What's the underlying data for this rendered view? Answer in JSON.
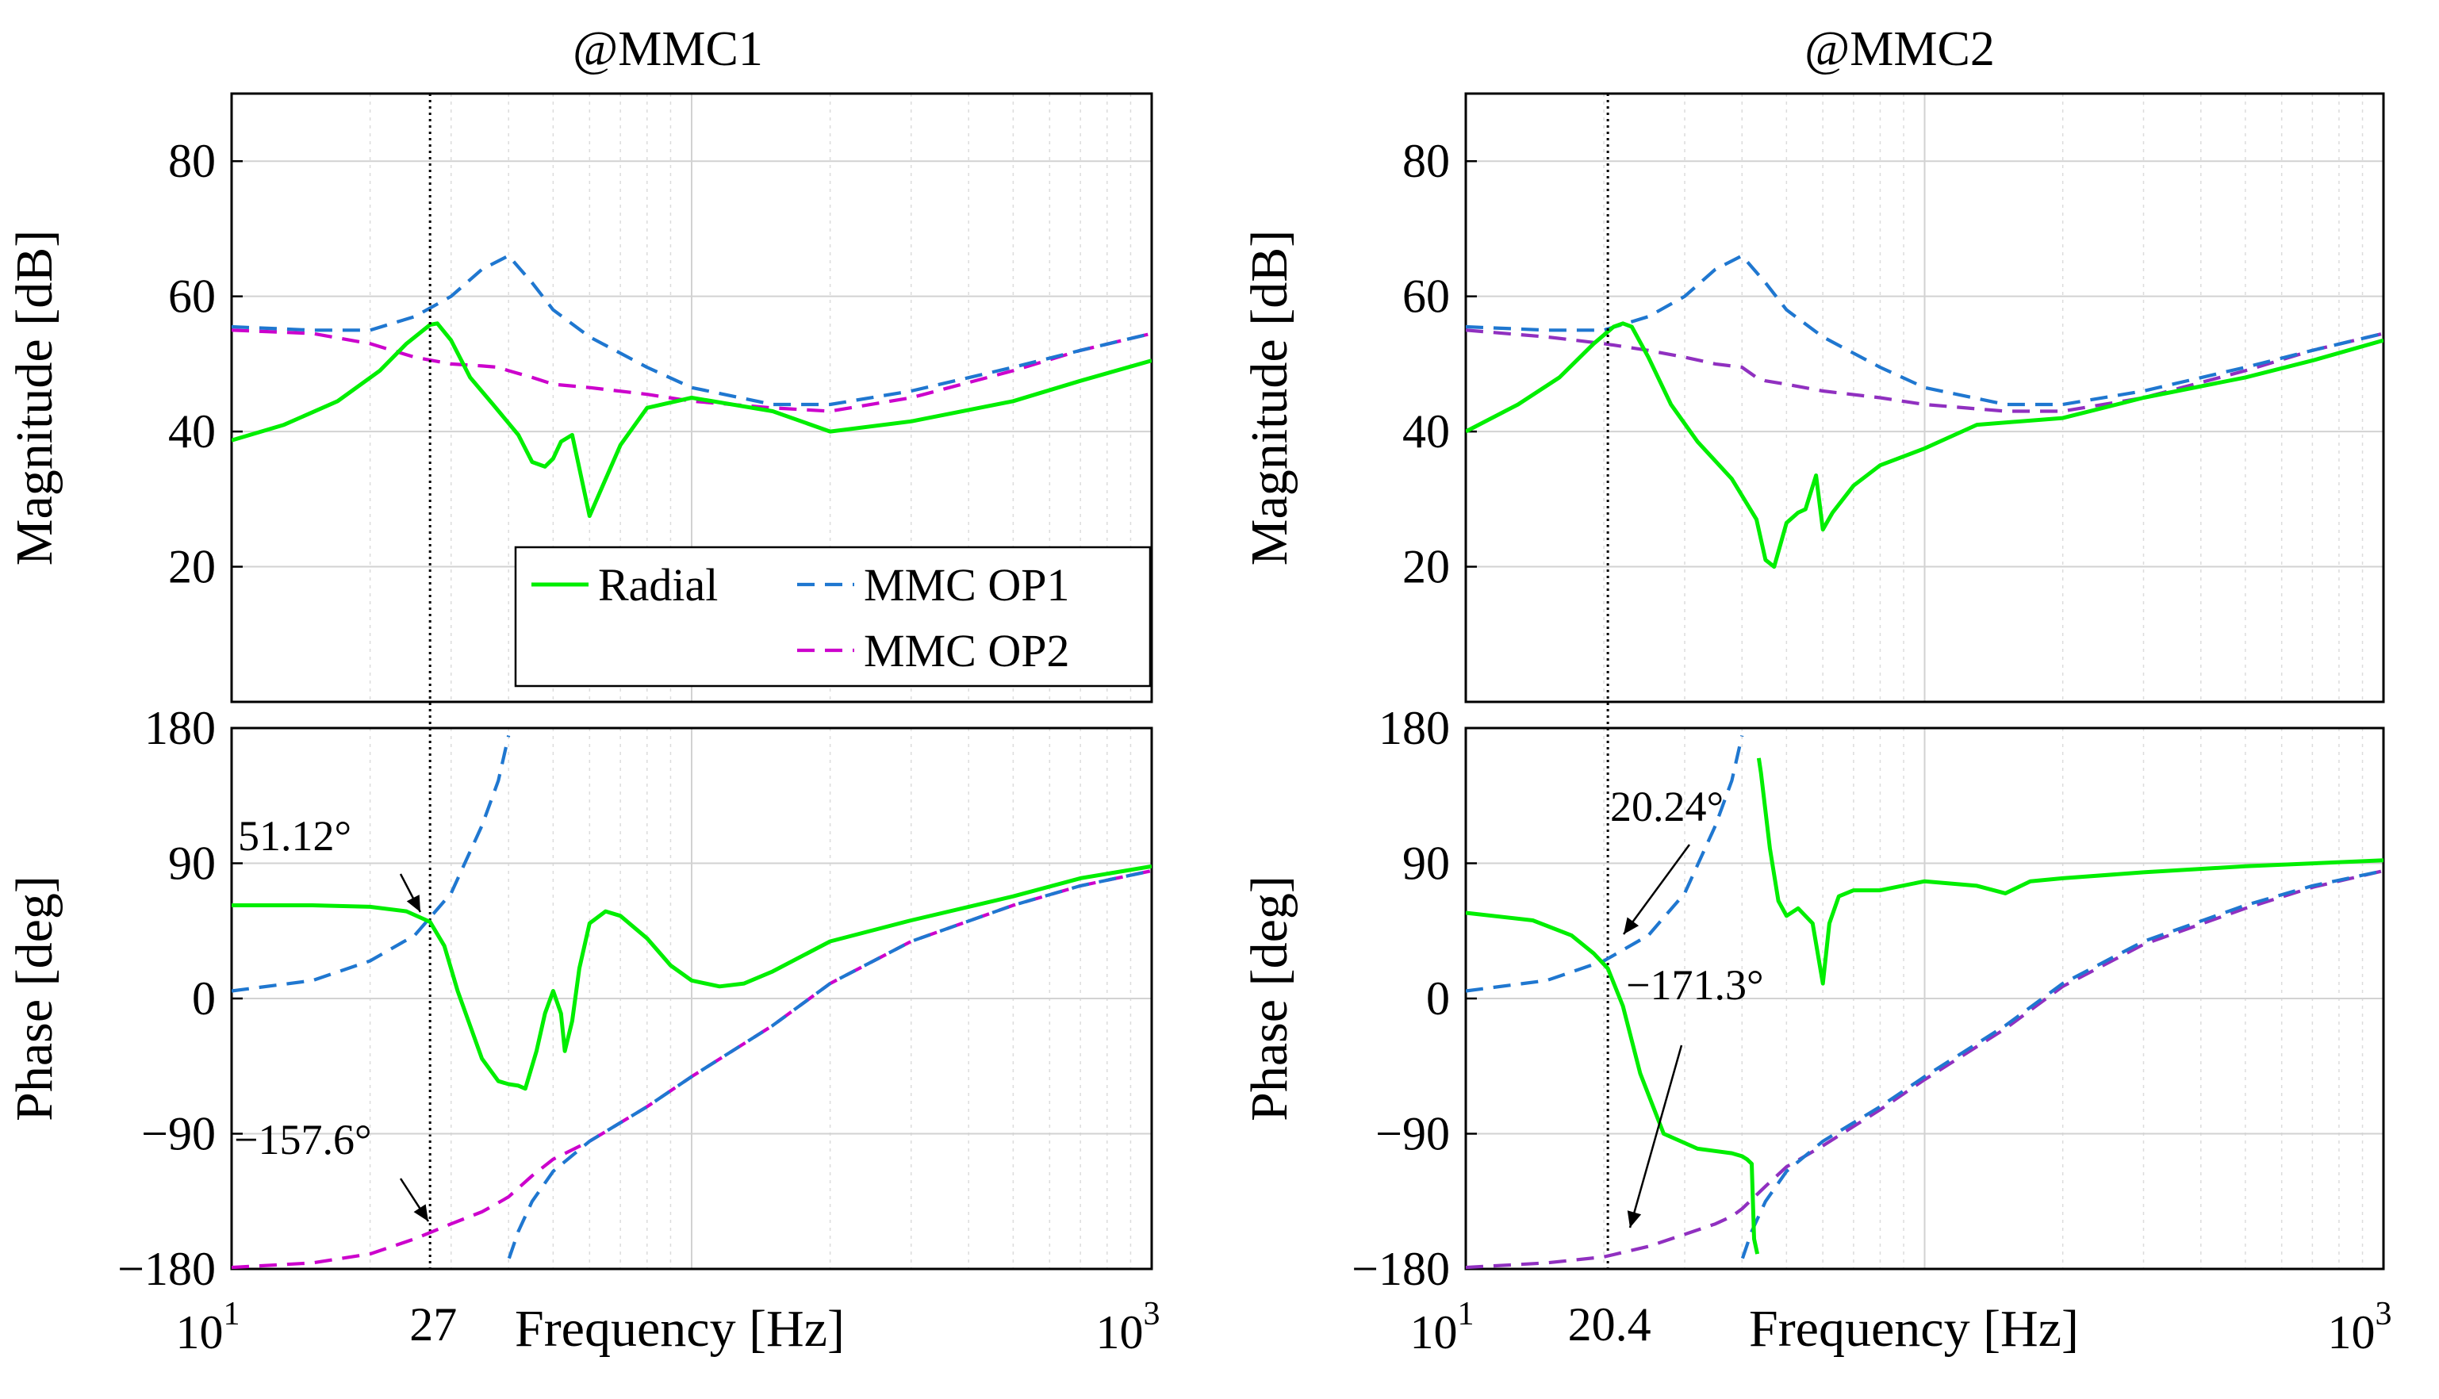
{
  "chart_data": [
    {
      "type": "line",
      "title": "@MMC1",
      "xlabel": "Frequency [Hz]",
      "xscale": "log",
      "xlim": [
        10,
        1000
      ],
      "x_tick_labels": [
        "10",
        "1",
        "10",
        "3"
      ],
      "marker": {
        "x": 27,
        "label": "27"
      },
      "legend": {
        "placement": "bottom-right of magnitude panel",
        "entries": [
          "Radial",
          "MMC OP1",
          "MMC OP2"
        ]
      },
      "magnitude": {
        "ylabel": "Magnitude [dB]",
        "ylim": [
          0,
          90
        ],
        "yticks": [
          "20",
          "40",
          "60",
          "80"
        ],
        "series": [
          {
            "name": "Radial",
            "color": "#00ee00",
            "dash": "solid",
            "x": [
              10,
              13,
              17,
              21,
              24,
              27,
              28,
              30,
              33,
              37,
              42,
              45,
              48,
              50,
              52,
              55,
              60,
              70,
              80,
              100,
              150,
              200,
              300,
              500,
              700,
              1000
            ],
            "y": [
              38.7,
              41,
              44.5,
              49,
              53,
              55.8,
              56,
              53.5,
              48,
              44,
              39.5,
              35.5,
              34.8,
              36,
              38.5,
              39.5,
              27.5,
              38,
              43.5,
              45,
              43,
              40,
              41.5,
              44.5,
              47.5,
              50.5
            ]
          },
          {
            "name": "MMC OP1",
            "color": "#1f77d0",
            "dash": "dashed",
            "x": [
              10,
              15,
              20,
              25,
              30,
              35,
              40,
              45,
              50,
              60,
              80,
              100,
              150,
              200,
              300,
              500,
              700,
              1000
            ],
            "y": [
              55.5,
              55,
              55,
              57,
              60,
              64,
              66,
              62,
              58,
              54,
              49.5,
              46.5,
              44,
              44,
              46,
              49.5,
              52,
              54.5
            ]
          },
          {
            "name": "MMC OP2",
            "color": "#cc00cc",
            "dash": "dashed",
            "x": [
              10,
              15,
              20,
              25,
              30,
              35,
              38,
              40,
              45,
              50,
              60,
              80,
              100,
              150,
              200,
              300,
              500,
              700,
              1000
            ],
            "y": [
              55,
              54.5,
              53,
              51,
              50,
              49.7,
              49.5,
              49,
              48,
              47,
              46.5,
              45.5,
              44.5,
              43.5,
              43,
              45,
              49,
              52,
              54.5
            ]
          }
        ]
      },
      "phase": {
        "ylabel": "Phase [deg]",
        "ylim": [
          -180,
          180
        ],
        "yticks": [
          "−180",
          "−90",
          "0",
          "90",
          "180"
        ],
        "annotations": [
          {
            "text": "51.12°",
            "x": 27,
            "y": 51.12
          },
          {
            "text": "−157.6°",
            "x": 27,
            "y": -157.6
          }
        ],
        "series": [
          {
            "name": "Radial",
            "color": "#00ee00",
            "dash": "solid",
            "x": [
              10,
              15,
              20,
              24,
              27,
              29,
              31,
              35,
              38,
              40,
              42,
              43.5,
              46,
              48,
              50,
              52,
              53,
              55,
              57,
              60,
              65,
              70,
              80,
              90,
              100,
              115,
              130,
              150,
              200,
              300,
              500,
              700,
              1000
            ],
            "y": [
              62,
              62,
              61,
              58,
              51,
              35,
              5,
              -40,
              -55,
              -57,
              -58,
              -60,
              -35,
              -10,
              5,
              -10,
              -35,
              -15,
              20,
              50,
              58,
              55,
              40,
              22,
              12,
              8,
              10,
              18,
              38,
              52,
              68,
              80,
              88
            ]
          },
          {
            "name": "MMC OP1",
            "color": "#1f77d0",
            "dash": "dashed",
            "x": [
              10,
              15,
              20,
              25,
              30,
              35,
              38,
              40,
              40.1,
              42,
              45,
              50,
              60,
              80,
              100,
              150,
              200,
              300,
              500,
              700,
              1000
            ],
            "y": [
              5,
              12,
              25,
              42,
              70,
              115,
              145,
              175,
              -173,
              -155,
              -135,
              -115,
              -95,
              -72,
              -52,
              -18,
              10,
              38,
              62,
              75,
              85
            ]
          },
          {
            "name": "MMC OP2",
            "color": "#cc00cc",
            "dash": "dashed",
            "x": [
              10,
              15,
              20,
              25,
              30,
              35,
              38,
              40,
              45,
              50,
              60,
              80,
              100,
              150,
              200,
              300,
              500,
              700,
              1000
            ],
            "y": [
              -179,
              -176,
              -170,
              -160,
              -150,
              -142,
              -136,
              -132,
              -118,
              -107,
              -95,
              -72,
              -52,
              -18,
              10,
              38,
              62,
              75,
              85
            ]
          }
        ]
      }
    },
    {
      "type": "line",
      "title": "@MMC2",
      "xlabel": "Frequency [Hz]",
      "xscale": "log",
      "xlim": [
        10,
        1000
      ],
      "x_tick_labels": [
        "10",
        "1",
        "10",
        "3"
      ],
      "marker": {
        "x": 20.4,
        "label": "20.4"
      },
      "magnitude": {
        "ylabel": "Magnitude [dB]",
        "ylim": [
          0,
          90
        ],
        "yticks": [
          "20",
          "40",
          "60",
          "80"
        ],
        "series": [
          {
            "name": "Radial",
            "color": "#00ee00",
            "dash": "solid",
            "x": [
              10,
              13,
              16,
              19,
              21,
              22,
              23,
              25,
              28,
              32,
              38,
              43,
              45,
              47,
              50,
              53,
              55,
              58,
              60,
              63,
              70,
              80,
              100,
              130,
              200,
              300,
              500,
              700,
              1000
            ],
            "y": [
              40,
              44,
              48,
              53,
              55.5,
              56,
              55.5,
              51,
              44,
              38.5,
              33,
              27,
              21,
              20,
              26.5,
              28,
              28.5,
              33.5,
              25.5,
              28,
              32,
              35,
              37.5,
              41,
              42,
              45,
              48,
              50.5,
              53.5
            ]
          },
          {
            "name": "MMC OP1",
            "color": "#1f77d0",
            "dash": "dashed",
            "x": [
              10,
              15,
              20,
              25,
              30,
              35,
              40,
              45,
              50,
              60,
              80,
              100,
              150,
              200,
              300,
              500,
              700,
              1000
            ],
            "y": [
              55.5,
              55,
              55,
              57,
              60,
              64,
              66,
              62,
              58,
              54,
              49.5,
              46.5,
              44,
              44,
              46,
              49.5,
              52,
              54.5
            ]
          },
          {
            "name": "MMC OP2",
            "color": "#9030c0",
            "dash": "dashed",
            "x": [
              10,
              15,
              20,
              25,
              30,
              35,
              40,
              43,
              45,
              50,
              60,
              80,
              100,
              150,
              200,
              300,
              500,
              700,
              1000
            ],
            "y": [
              55,
              54,
              53,
              52,
              51,
              50,
              49.5,
              48,
              47.5,
              47,
              46,
              45,
              44,
              43,
              43,
              45,
              49,
              52,
              54.5
            ]
          }
        ]
      },
      "phase": {
        "ylabel": "Phase [deg]",
        "ylim": [
          -180,
          180
        ],
        "yticks": [
          "−180",
          "−90",
          "0",
          "90",
          "180"
        ],
        "annotations": [
          {
            "text": "20.24°",
            "x": 20.4,
            "y": 20.24
          },
          {
            "text": "−171.3°",
            "x": 20.4,
            "y": -171.3
          }
        ],
        "series": [
          {
            "name": "Radial",
            "color": "#00ee00",
            "dash": "solid",
            "x": [
              10,
              14,
              17,
              19,
              20.4,
              22,
              24,
              27,
              32,
              38,
              40,
              41,
              42,
              42.5,
              43.2,
              43.5,
              44,
              46,
              48,
              50,
              53,
              57,
              60,
              62,
              65,
              70,
              80,
              100,
              130,
              150,
              170,
              200,
              300,
              500,
              1000
            ],
            "y": [
              57,
              52,
              42,
              30,
              20,
              -5,
              -50,
              -90,
              -100,
              -103,
              -105,
              -107,
              -110,
              -160,
              -170,
              160,
              150,
              100,
              65,
              55,
              60,
              50,
              10,
              50,
              68,
              72,
              72,
              78,
              75,
              70,
              78,
              80,
              84,
              88,
              92
            ]
          },
          {
            "name": "MMC OP1",
            "color": "#1f77d0",
            "dash": "dashed",
            "x": [
              10,
              15,
              20,
              25,
              30,
              35,
              38,
              40,
              40.1,
              42,
              45,
              50,
              60,
              80,
              100,
              150,
              200,
              300,
              500,
              700,
              1000
            ],
            "y": [
              5,
              12,
              25,
              42,
              70,
              115,
              145,
              175,
              -173,
              -155,
              -135,
              -115,
              -95,
              -72,
              -52,
              -18,
              10,
              38,
              62,
              75,
              85
            ]
          },
          {
            "name": "MMC OP2",
            "color": "#9030c0",
            "dash": "dashed",
            "x": [
              10,
              15,
              20,
              25,
              30,
              35,
              38,
              40,
              45,
              50,
              60,
              80,
              100,
              150,
              200,
              300,
              500,
              700,
              1000
            ],
            "y": [
              -179,
              -176,
              -172,
              -165,
              -157,
              -150,
              -145,
              -140,
              -125,
              -112,
              -98,
              -74,
              -54,
              -20,
              8,
              36,
              60,
              74,
              85
            ]
          }
        ]
      }
    }
  ]
}
